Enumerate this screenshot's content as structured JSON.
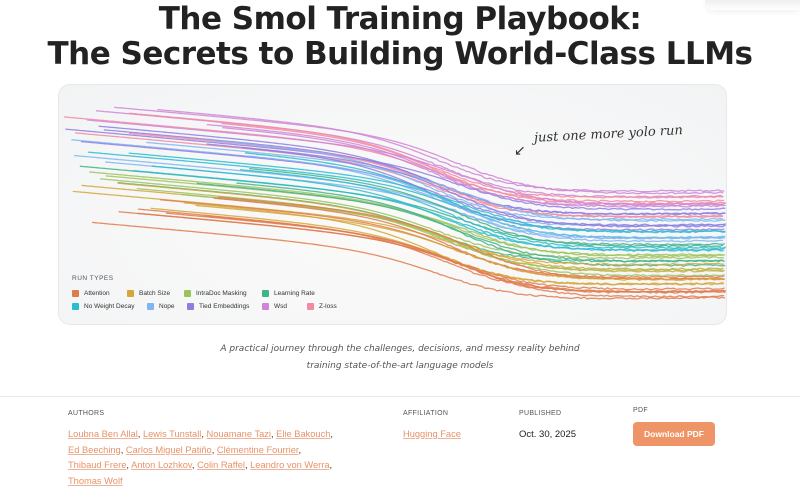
{
  "title_line1": "The Smol Training Playbook:",
  "title_line2": "The Secrets to Building World-Class LLMs",
  "banner": {
    "annotation": "just one more yolo run",
    "legend_title": "RUN TYPES",
    "legend": [
      {
        "label": "Attention",
        "color": "#e07b4f"
      },
      {
        "label": "Batch Size",
        "color": "#d4a73a"
      },
      {
        "label": "IntraDoc Masking",
        "color": "#9cc35c"
      },
      {
        "label": "Learning Rate",
        "color": "#3fb38a"
      },
      {
        "label": "No Weight Decay",
        "color": "#2bbcd0"
      },
      {
        "label": "Nope",
        "color": "#7fb6f0"
      },
      {
        "label": "Tied Embeddings",
        "color": "#8f7ee0"
      },
      {
        "label": "Wsd",
        "color": "#cf86d6"
      },
      {
        "label": "Z-loss",
        "color": "#f38aa0"
      }
    ]
  },
  "subtitle_line1": "A practical journey through the challenges, decisions, and messy reality behind",
  "subtitle_line2": "training state-of-the-art language models",
  "meta": {
    "authors_label": "AUTHORS",
    "authors": [
      "Loubna Ben Allal",
      "Lewis Tunstall",
      "Nouamane Tazi",
      "Elie Bakouch",
      "Ed Beeching",
      "Carlos Miguel Patiño",
      "Clémentine Fourrier",
      "Thibaud Frere",
      "Anton Lozhkov",
      "Colin Raffel",
      "Leandro von Werra",
      "Thomas Wolf"
    ],
    "affiliation_label": "AFFILIATION",
    "affiliation": "Hugging Face",
    "published_label": "PUBLISHED",
    "published": "Oct. 30, 2025",
    "pdf_label": "PDF",
    "pdf_button": "Download PDF"
  }
}
